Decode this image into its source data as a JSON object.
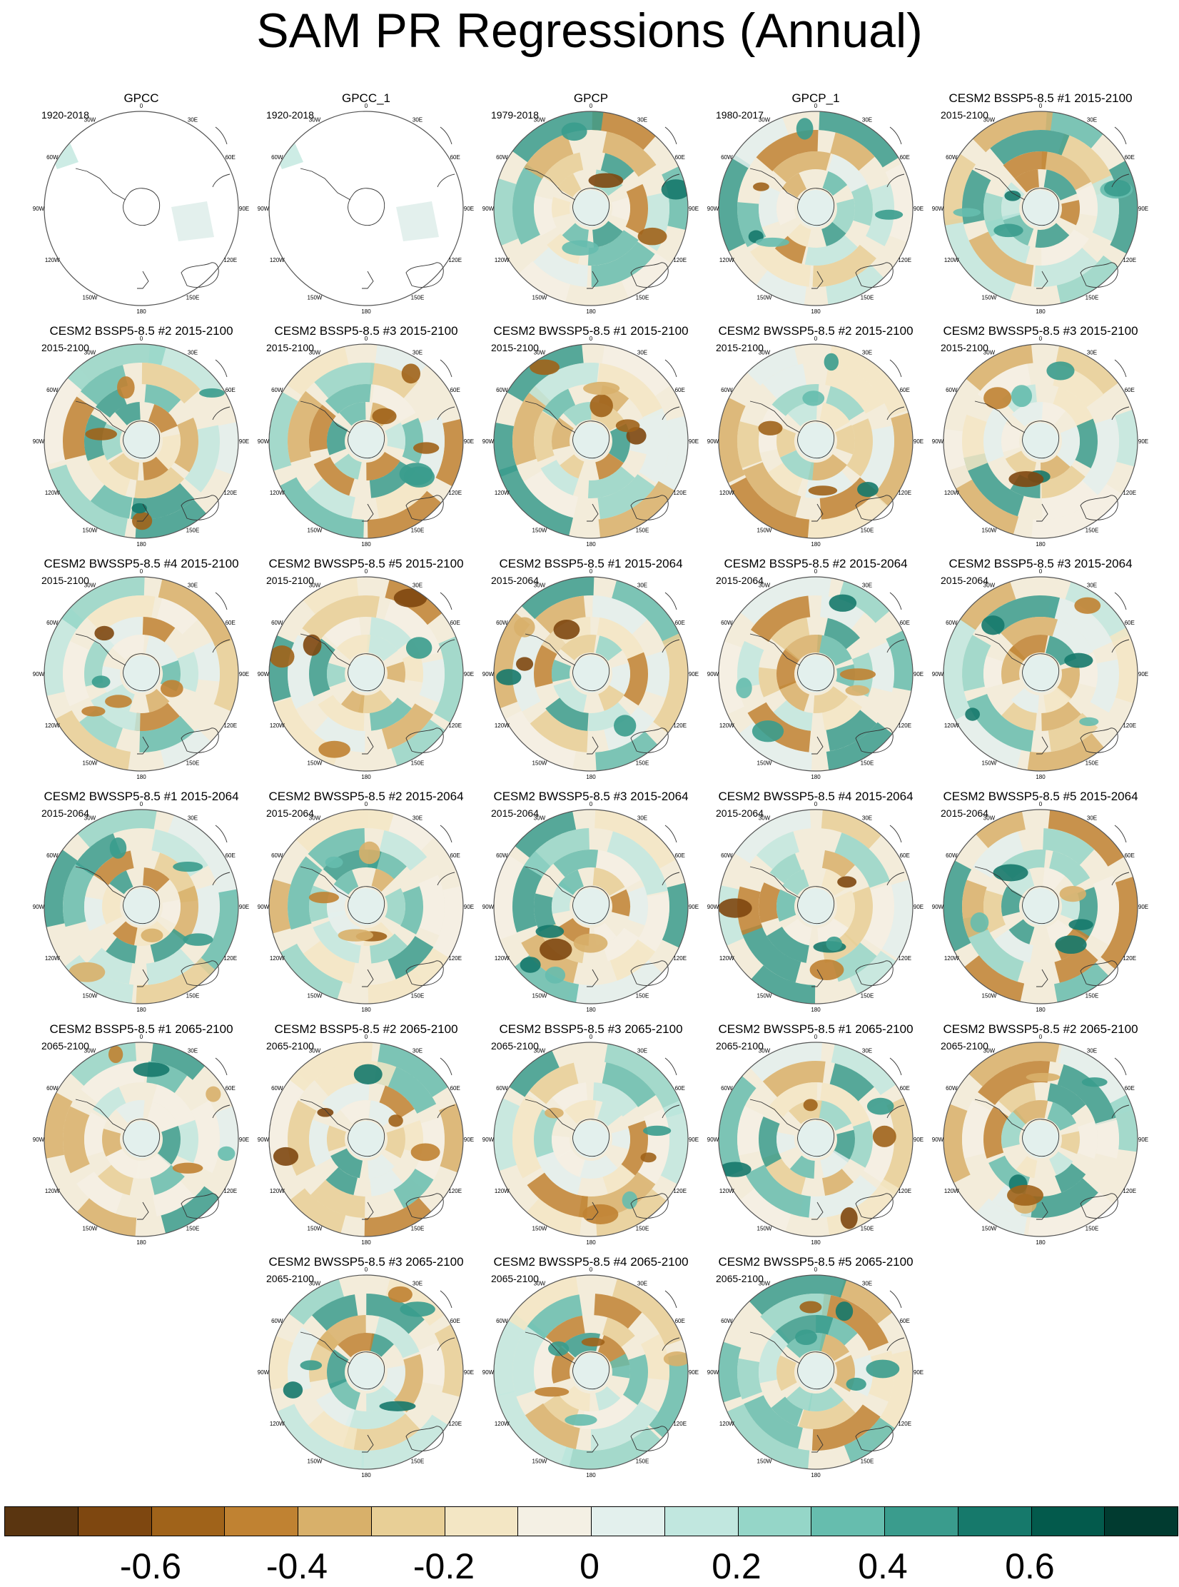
{
  "title": "SAM PR Regressions (Annual)",
  "lon_labels": [
    "0",
    "30E",
    "60E",
    "90E",
    "120E",
    "150E",
    "180",
    "150W",
    "120W",
    "90W",
    "60W",
    "30W"
  ],
  "panels": [
    {
      "title": "GPCC",
      "period": "1920-2018",
      "masked": true
    },
    {
      "title": "GPCC_1",
      "period": "1920-2018",
      "masked": true
    },
    {
      "title": "GPCP",
      "period": "1979-2018"
    },
    {
      "title": "GPCP_1",
      "period": "1980-2017"
    },
    {
      "title": "CESM2 BSSP5-8.5 #1 2015-2100",
      "period": "2015-2100"
    },
    {
      "title": "CESM2 BSSP5-8.5 #2 2015-2100",
      "period": "2015-2100"
    },
    {
      "title": "CESM2 BSSP5-8.5 #3 2015-2100",
      "period": "2015-2100"
    },
    {
      "title": "CESM2 BWSSP5-8.5 #1 2015-2100",
      "period": "2015-2100"
    },
    {
      "title": "CESM2 BWSSP5-8.5 #2 2015-2100",
      "period": "2015-2100"
    },
    {
      "title": "CESM2 BWSSP5-8.5 #3 2015-2100",
      "period": "2015-2100"
    },
    {
      "title": "CESM2 BWSSP5-8.5 #4 2015-2100",
      "period": "2015-2100"
    },
    {
      "title": "CESM2 BWSSP5-8.5 #5 2015-2100",
      "period": "2015-2100"
    },
    {
      "title": "CESM2 BSSP5-8.5 #1 2015-2064",
      "period": "2015-2064"
    },
    {
      "title": "CESM2 BSSP5-8.5 #2 2015-2064",
      "period": "2015-2064"
    },
    {
      "title": "CESM2 BSSP5-8.5 #3 2015-2064",
      "period": "2015-2064"
    },
    {
      "title": "CESM2 BWSSP5-8.5 #1 2015-2064",
      "period": "2015-2064"
    },
    {
      "title": "CESM2 BWSSP5-8.5 #2 2015-2064",
      "period": "2015-2064"
    },
    {
      "title": "CESM2 BWSSP5-8.5 #3 2015-2064",
      "period": "2015-2064"
    },
    {
      "title": "CESM2 BWSSP5-8.5 #4 2015-2064",
      "period": "2015-2064"
    },
    {
      "title": "CESM2 BWSSP5-8.5 #5 2015-2064",
      "period": "2015-2064"
    },
    {
      "title": "CESM2 BSSP5-8.5 #1 2065-2100",
      "period": "2065-2100"
    },
    {
      "title": "CESM2 BSSP5-8.5 #2 2065-2100",
      "period": "2065-2100"
    },
    {
      "title": "CESM2 BSSP5-8.5 #3 2065-2100",
      "period": "2065-2100"
    },
    {
      "title": "CESM2 BWSSP5-8.5 #1 2065-2100",
      "period": "2065-2100"
    },
    {
      "title": "CESM2 BWSSP5-8.5 #2 2065-2100",
      "period": "2065-2100"
    },
    {
      "title": "CESM2 BWSSP5-8.5 #3 2065-2100",
      "period": "2065-2100"
    },
    {
      "title": "CESM2 BWSSP5-8.5 #4 2065-2100",
      "period": "2065-2100"
    },
    {
      "title": "CESM2 BWSSP5-8.5 #5 2065-2100",
      "period": "2065-2100"
    }
  ],
  "colorbar": {
    "colors": [
      "#5a3510",
      "#7e4710",
      "#a0631a",
      "#c08232",
      "#d8b06a",
      "#e8cf96",
      "#f3e6c4",
      "#f4f0e4",
      "#e3f0ed",
      "#c1e7df",
      "#95d6c8",
      "#66bdae",
      "#3a9c8d",
      "#16796b",
      "#035a4c",
      "#013b30"
    ],
    "ticks": [
      "-0.6",
      "-0.4",
      "-0.2",
      "0",
      "0.2",
      "0.4",
      "0.6"
    ]
  }
}
